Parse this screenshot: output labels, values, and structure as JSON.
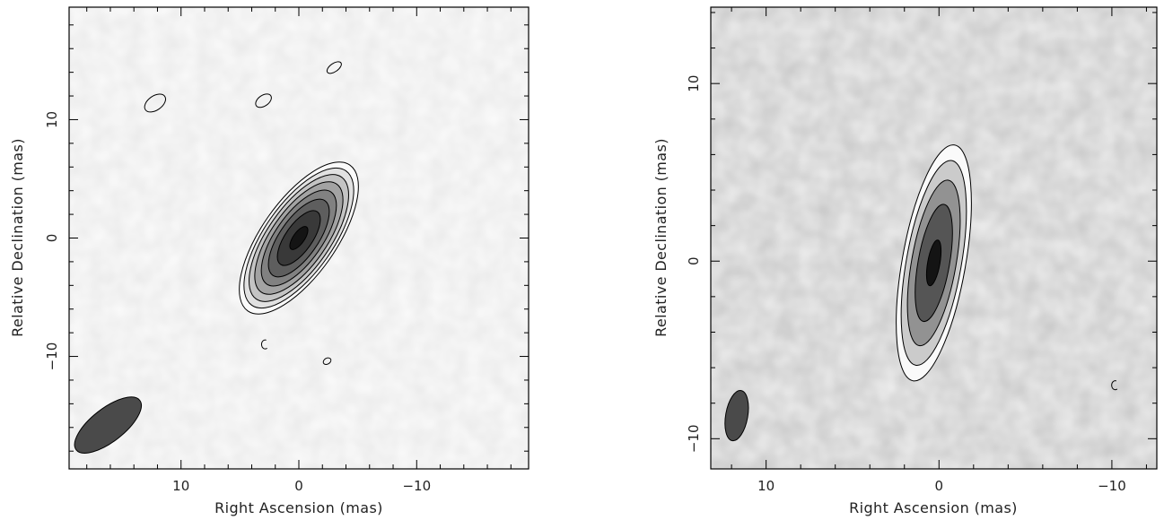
{
  "chart_data": [
    {
      "type": "contour",
      "xlabel": "Right Ascension  (mas)",
      "ylabel": "Relative Declination  (mas)",
      "xlim": [
        19.5,
        -19.5
      ],
      "ylim": [
        -19.5,
        19.5
      ],
      "xticks": [
        {
          "value": 10,
          "label": "10"
        },
        {
          "value": 0,
          "label": "0"
        },
        {
          "value": -10,
          "label": "−10"
        }
      ],
      "yticks": [
        {
          "value": -10,
          "label": "−10"
        },
        {
          "value": 0,
          "label": "0"
        },
        {
          "value": 10,
          "label": "10"
        }
      ],
      "minor_tick_step": 2,
      "source": {
        "x": 0,
        "y": 0,
        "pa_deg": 55,
        "major": 3.6,
        "minor": 1.5
      },
      "contour_levels": [
        0.9,
        0.55,
        0.3,
        0.16,
        0.08,
        0.04,
        0.02,
        0.01
      ],
      "outer_contour_scale": [
        4.0,
        3.5
      ],
      "blobs": [
        {
          "x": 12.2,
          "y": 11.4,
          "rx": 1.0,
          "ry": 0.6,
          "angle": -35
        },
        {
          "x": 3.0,
          "y": 11.6,
          "rx": 0.75,
          "ry": 0.45,
          "angle": -35
        },
        {
          "x": -3.0,
          "y": 14.4,
          "rx": 0.7,
          "ry": 0.35,
          "angle": -35
        },
        {
          "x": -2.4,
          "y": -10.4,
          "rx": 0.35,
          "ry": 0.25,
          "angle": -30
        }
      ],
      "arc_marks": [
        {
          "x": 3.0,
          "y": -9.0
        }
      ],
      "beam": {
        "x": 16.2,
        "y": -15.8,
        "major": 3.6,
        "minor": 1.4,
        "pa_deg": 38
      }
    },
    {
      "type": "contour",
      "xlabel": "Right Ascension  (mas)",
      "ylabel": "Relative Declination  (mas)",
      "xlim": [
        13.2,
        -12.6
      ],
      "ylim": [
        -11.7,
        14.3
      ],
      "xticks": [
        {
          "value": 10,
          "label": "10"
        },
        {
          "value": 0,
          "label": "0"
        },
        {
          "value": -10,
          "label": "−10"
        }
      ],
      "yticks": [
        {
          "value": -10,
          "label": "−10"
        },
        {
          "value": 0,
          "label": "0"
        },
        {
          "value": 10,
          "label": "10"
        }
      ],
      "minor_tick_step": 2,
      "source": {
        "x": 0.3,
        "y": -0.1,
        "pa_deg": 80,
        "major": 3.3,
        "minor": 0.85
      },
      "contour_levels": [
        0.9,
        0.5,
        0.25,
        0.12,
        0.06
      ],
      "outer_contour_scale": [
        3.6,
        3.2
      ],
      "blobs": [],
      "arc_marks": [
        {
          "x": -10.1,
          "y": -7.0
        }
      ],
      "beam": {
        "x": 11.7,
        "y": -8.7,
        "major": 1.55,
        "minor": 0.62,
        "pa_deg": 80
      }
    }
  ]
}
